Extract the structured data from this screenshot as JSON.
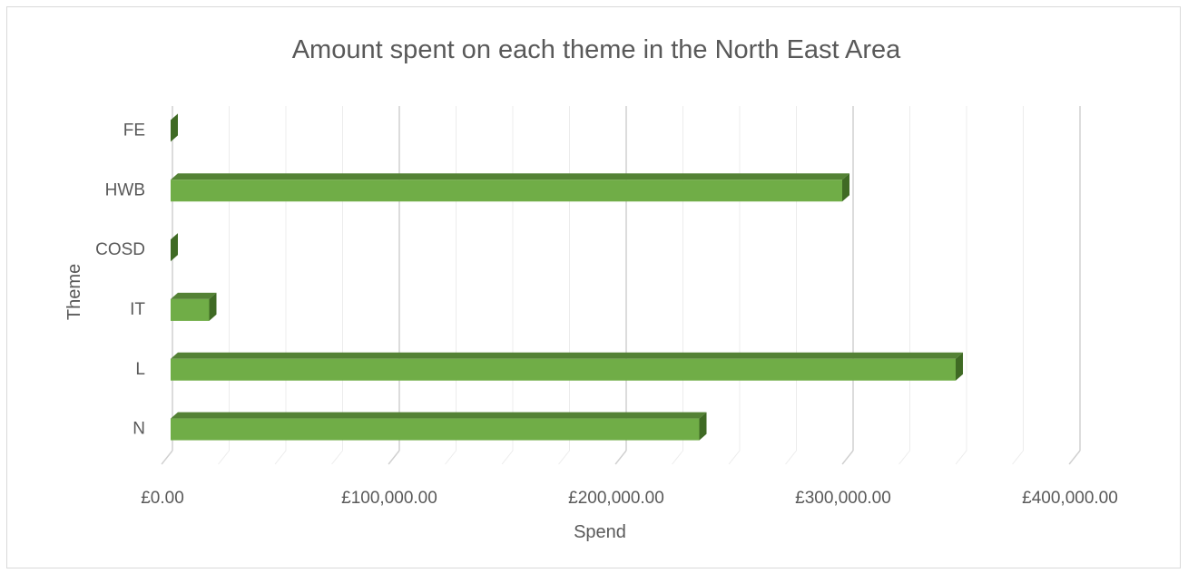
{
  "chart_data": {
    "type": "bar",
    "orientation": "horizontal",
    "style": "3d",
    "title": "Amount spent on each theme in the North East Area",
    "xlabel": "Spend",
    "ylabel": "Theme",
    "categories": [
      "N",
      "L",
      "IT",
      "COSD",
      "HWB",
      "FE"
    ],
    "values": [
      233000,
      346000,
      17000,
      0,
      296000,
      0
    ],
    "xlim": [
      0,
      400000
    ],
    "ticks": [
      0,
      100000,
      200000,
      300000,
      400000
    ],
    "tick_labels": [
      "£0.00",
      "£100,000.00",
      "£200,000.00",
      "£300,000.00",
      "£400,000.00"
    ],
    "grid": true,
    "legend": "none",
    "colors": {
      "bar_front": "#70ad47",
      "bar_top": "#548235",
      "bar_side": "#3f6a24",
      "grid_major": "#d0d0d0",
      "grid_minor": "#ececec",
      "text": "#595959"
    }
  }
}
